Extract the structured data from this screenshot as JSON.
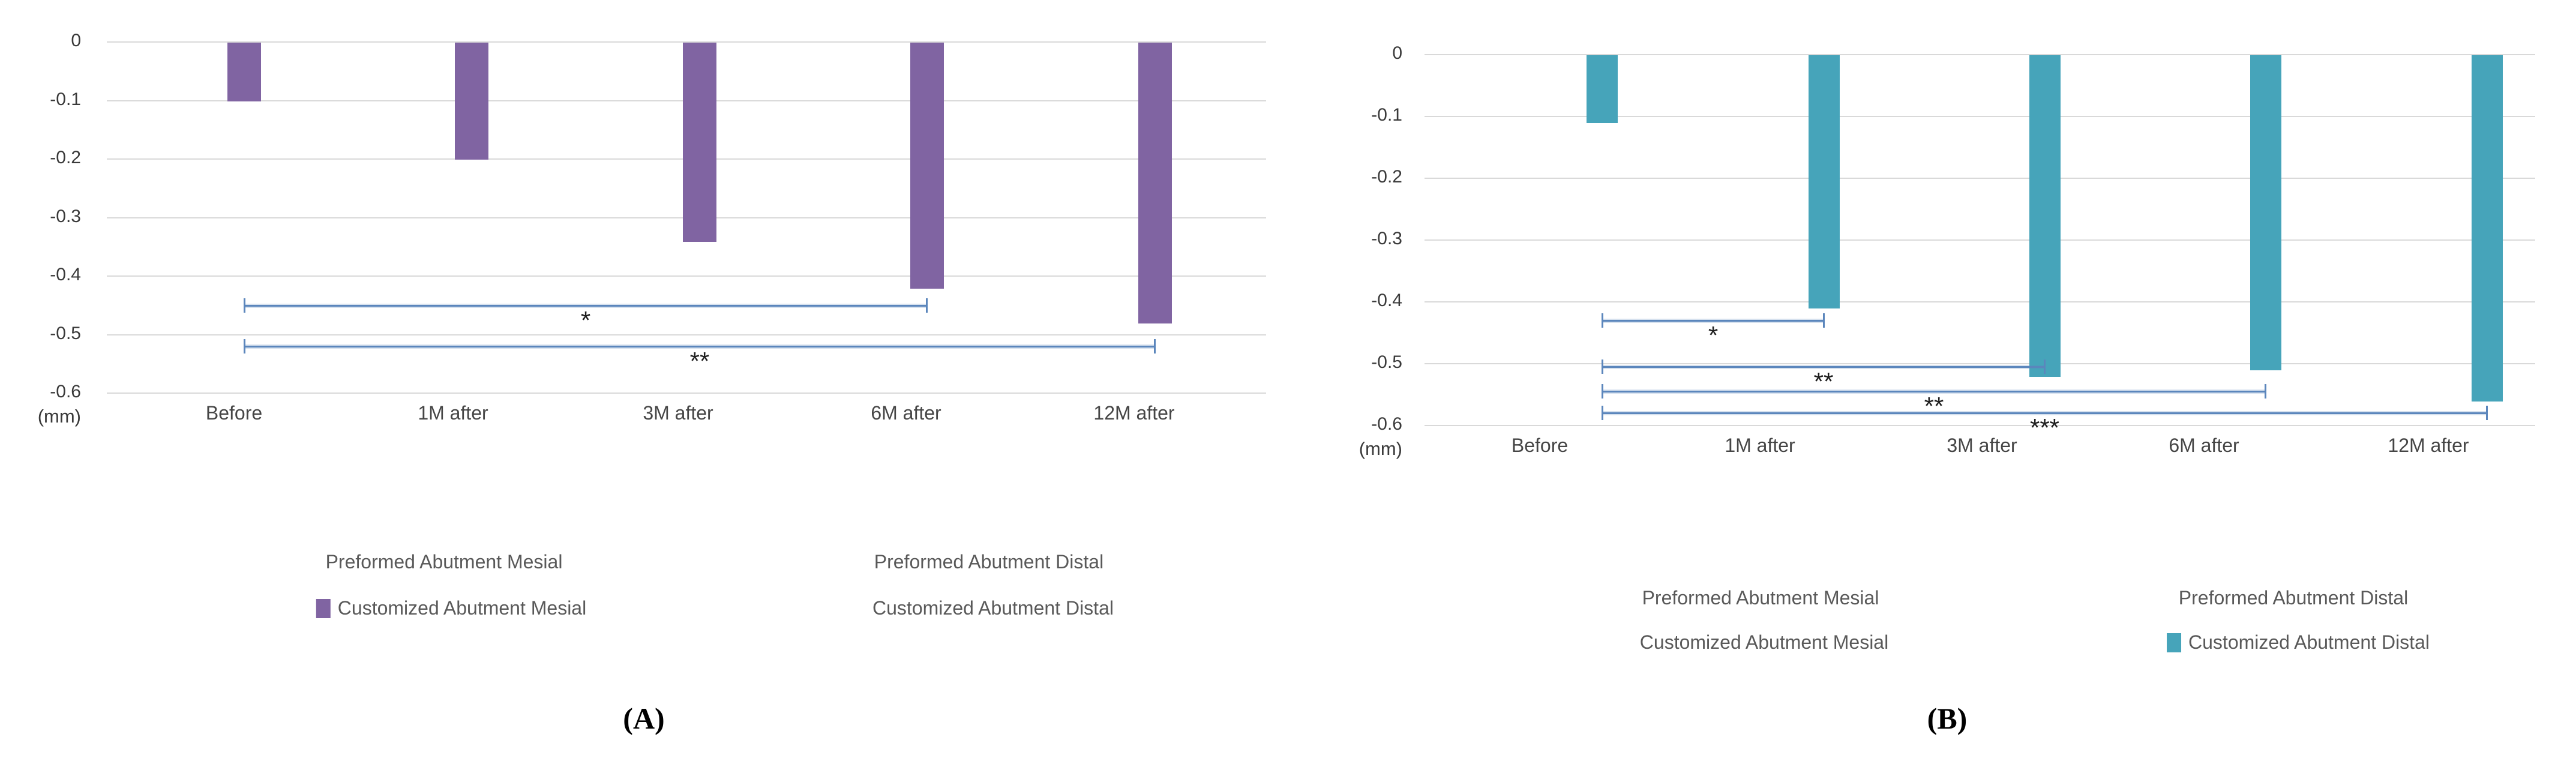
{
  "figure_title": "",
  "styles": {
    "bracket_color": "#5b86bc",
    "gridline_color": "#d9d9d9",
    "legend_text_color": "#595959"
  },
  "chart_data": [
    {
      "id": "A",
      "type": "bar",
      "panel_caption": "(A)",
      "axis_unit_label": "(mm)",
      "xlabel": "",
      "ylabel": "(mm)",
      "ylim": [
        -0.6,
        0
      ],
      "grid": true,
      "ytick_labels": [
        "0",
        "-0.1",
        "-0.2",
        "-0.3",
        "-0.4",
        "-0.5",
        "-0.6"
      ],
      "categories": [
        "Before",
        "1M after",
        "3M after",
        "6M after",
        "12M after"
      ],
      "series": [
        {
          "name": "Customized Abutment Mesial",
          "color": "#8064A2",
          "values": [
            -0.1,
            -0.2,
            -0.34,
            -0.42,
            -0.48
          ]
        }
      ],
      "significance_brackets": [
        {
          "from": "Before",
          "to": "6M after",
          "label": "*",
          "y": -0.45
        },
        {
          "from": "Before",
          "to": "12M after",
          "label": "**",
          "y": -0.52
        }
      ],
      "legend": {
        "position": "bottom",
        "entries": [
          {
            "label": "Preformed Abutment Mesial",
            "swatch_color": null
          },
          {
            "label": "Preformed Abutment Distal",
            "swatch_color": null
          },
          {
            "label": "Customized Abutment Mesial",
            "swatch_color": "#8064A2"
          },
          {
            "label": "Customized Abutment Distal",
            "swatch_color": null
          }
        ]
      }
    },
    {
      "id": "B",
      "type": "bar",
      "panel_caption": "(B)",
      "axis_unit_label": "(mm)",
      "xlabel": "",
      "ylabel": "(mm)",
      "ylim": [
        -0.6,
        0
      ],
      "grid": true,
      "ytick_labels": [
        "0",
        "-0.1",
        "-0.2",
        "-0.3",
        "-0.4",
        "-0.5",
        "-0.6"
      ],
      "categories": [
        "Before",
        "1M after",
        "3M after",
        "6M after",
        "12M after"
      ],
      "series": [
        {
          "name": "Customized Abutment Distal",
          "color": "#46A4BA",
          "values": [
            -0.11,
            -0.41,
            -0.52,
            -0.51,
            -0.56
          ]
        }
      ],
      "significance_brackets": [
        {
          "from": "Before",
          "to": "1M after",
          "label": "*",
          "y": -0.43
        },
        {
          "from": "Before",
          "to": "3M after",
          "label": "**",
          "y": -0.505
        },
        {
          "from": "Before",
          "to": "6M after",
          "label": "**",
          "y": -0.545
        },
        {
          "from": "Before",
          "to": "12M after",
          "label": "***",
          "y": -0.58
        }
      ],
      "legend": {
        "position": "bottom",
        "entries": [
          {
            "label": "Preformed Abutment Mesial",
            "swatch_color": null
          },
          {
            "label": "Preformed Abutment Distal",
            "swatch_color": null
          },
          {
            "label": "Customized Abutment Mesial",
            "swatch_color": null
          },
          {
            "label": "Customized Abutment Distal",
            "swatch_color": "#46A4BA"
          }
        ]
      }
    }
  ]
}
